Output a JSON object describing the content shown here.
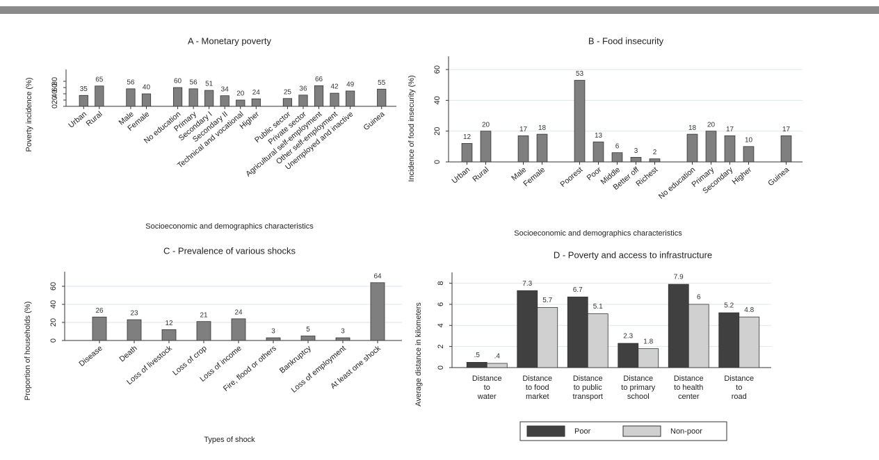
{
  "chart_data": [
    {
      "type": "bar",
      "title": "A - Monetary poverty",
      "y_label": "Poverty incidence (%)",
      "x_label": "Socioeconomic and demographics characteristics",
      "categories": [
        "Urban",
        "Rural",
        null,
        "Male",
        "Female",
        null,
        "No education",
        "Primary",
        "Secondary I",
        "Secondary II",
        "Technical and vocational",
        "Higher",
        null,
        "Public sector",
        "Private sector",
        "Agricultural self-employment",
        "Other self-employment",
        "Unemployed and inactive",
        null,
        "Guinea"
      ],
      "values": [
        35,
        65,
        null,
        56,
        40,
        null,
        60,
        56,
        51,
        34,
        20,
        24,
        null,
        25,
        36,
        66,
        42,
        49,
        null,
        55
      ],
      "color": "#7f7f7f",
      "ylim": [
        0,
        100
      ],
      "yticks": [
        0,
        20,
        40,
        60,
        80
      ],
      "grid": false
    },
    {
      "type": "bar",
      "title": "B - Food insecurity",
      "y_label": "Incidence of food insecurity (%)",
      "x_label": "Socioeconomic and demographics characteristics",
      "categories": [
        "Urban",
        "Rural",
        null,
        "Male",
        "Female",
        null,
        "Poorest",
        "Poor",
        "Middle",
        "Better off",
        "Richest",
        null,
        "No education",
        "Primary",
        "Secondary",
        "Higher",
        null,
        "Guinea"
      ],
      "values": [
        12,
        20,
        null,
        17,
        18,
        null,
        53,
        13,
        6,
        3,
        2,
        null,
        18,
        20,
        17,
        10,
        null,
        17
      ],
      "color": "#7f7f7f",
      "ylim": [
        0,
        65
      ],
      "yticks": [
        0,
        20,
        40,
        60
      ],
      "grid": true
    },
    {
      "type": "bar",
      "title": "C - Prevalence of various shocks",
      "y_label": "Proportion of households (%)",
      "x_label": "Types of shock",
      "categories": [
        "Disease",
        "Death",
        "Loss of livestock",
        "Loss of crop",
        "Loss of income",
        "Fire, flood or others",
        "Bankruptcy",
        "Loss of employment",
        "At least one shock"
      ],
      "values": [
        26,
        23,
        12,
        21,
        24,
        3,
        5,
        3,
        64
      ],
      "color": "#7f7f7f",
      "ylim": [
        0,
        70
      ],
      "yticks": [
        0,
        20,
        40,
        60
      ],
      "grid": true
    },
    {
      "type": "grouped_bar",
      "title": "D - Poverty and access to infrastructure",
      "y_label": "Average distance in kilometers",
      "categories": [
        [
          "Distance",
          "to",
          "water"
        ],
        [
          "Distance",
          "to food",
          "market"
        ],
        [
          "Distance",
          "to public",
          "transport"
        ],
        [
          "Distance",
          "to primary",
          "school"
        ],
        [
          "Distance",
          "to health",
          "center"
        ],
        [
          "Distance",
          "to",
          "road"
        ]
      ],
      "series": [
        {
          "name": "Poor",
          "color": "#404040",
          "values": [
            0.5,
            7.3,
            6.7,
            2.3,
            7.9,
            5.2
          ],
          "value_labels": [
            ".5",
            "7.3",
            "6.7",
            "2.3",
            "7.9",
            "5.2"
          ]
        },
        {
          "name": "Non-poor",
          "color": "#d0d0d0",
          "values": [
            0.4,
            5.7,
            5.1,
            1.8,
            6,
            4.8
          ],
          "value_labels": [
            ".4",
            "5.7",
            "5.1",
            "1.8",
            "6",
            "4.8"
          ]
        }
      ],
      "ylim": [
        0,
        8.5
      ],
      "yticks": [
        0,
        2,
        4,
        6,
        8
      ],
      "grid": true,
      "legend": "bottom"
    }
  ]
}
